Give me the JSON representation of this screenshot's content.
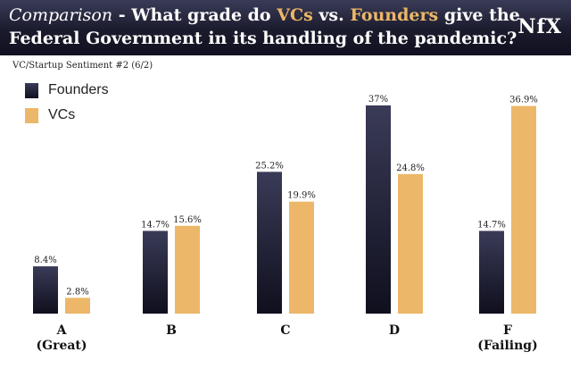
{
  "header": {
    "title_part1": "Comparison",
    "title_part2": " - What grade do ",
    "title_vcs": "VCs",
    "title_part3": " vs. ",
    "title_founders": "Founders",
    "title_part4": " give the",
    "title_line2": "Federal Government in its handling of the pandemic?",
    "logo": "NfX"
  },
  "subtitle": "VC/Startup Sentiment #2 (6/2)",
  "chart_data": {
    "type": "bar",
    "categories": [
      "A\n(Great)",
      "B",
      "C",
      "D",
      "F\n(Failing)"
    ],
    "series": [
      {
        "name": "Founders",
        "color": "#1c1c30",
        "values": [
          8.4,
          14.7,
          25.2,
          37,
          14.7
        ],
        "labels": [
          "8.4%",
          "14.7%",
          "25.2%",
          "37%",
          "14.7%"
        ]
      },
      {
        "name": "VCs",
        "color": "#ecb768",
        "values": [
          2.8,
          15.6,
          19.9,
          24.8,
          36.9
        ],
        "labels": [
          "2.8%",
          "15.6%",
          "19.9%",
          "24.8%",
          "36.9%"
        ]
      }
    ],
    "ylim": [
      0,
      40
    ],
    "grid": false,
    "legend": "top-left"
  }
}
